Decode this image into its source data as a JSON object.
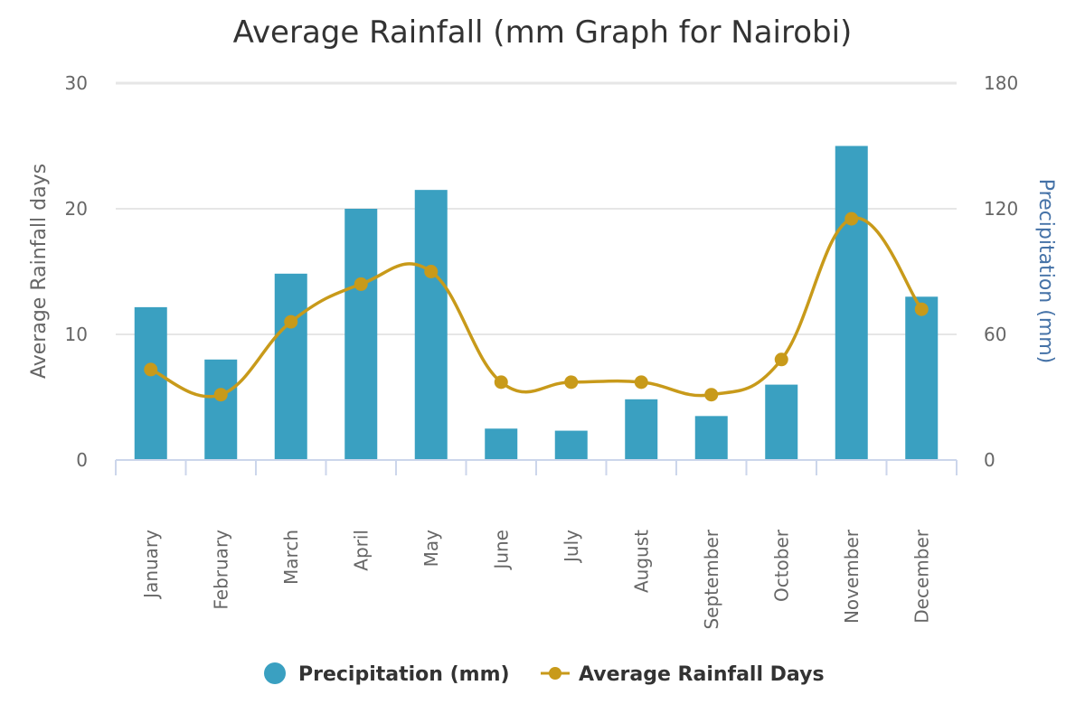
{
  "chart_data": {
    "type": "bar+line",
    "title": "Average Rainfall (mm Graph for Nairobi)",
    "categories": [
      "January",
      "February",
      "March",
      "April",
      "May",
      "June",
      "July",
      "August",
      "September",
      "October",
      "November",
      "December"
    ],
    "series": [
      {
        "name": "Precipitation (mm)",
        "type": "bar",
        "axis": "right",
        "color": "#3aa0c1",
        "values": [
          73,
          48,
          89,
          120,
          129,
          15,
          14,
          29,
          21,
          36,
          150,
          78
        ]
      },
      {
        "name": "Average Rainfall Days",
        "type": "line",
        "axis": "left",
        "color": "#c89a1a",
        "smooth": true,
        "values": [
          7.2,
          5.2,
          11,
          14,
          15,
          6.2,
          6.2,
          6.2,
          5.2,
          8,
          19.2,
          12
        ]
      }
    ],
    "yaxis_left": {
      "label": "Average Rainfall days",
      "ticks": [
        "0",
        "10",
        "20",
        "30"
      ],
      "range": [
        0,
        30
      ]
    },
    "yaxis_right": {
      "label": "Precipitation (mm)",
      "ticks": [
        "0",
        "60",
        "120",
        "180"
      ],
      "range": [
        0,
        180
      ]
    },
    "grid": true,
    "legend": "bottom-center"
  }
}
